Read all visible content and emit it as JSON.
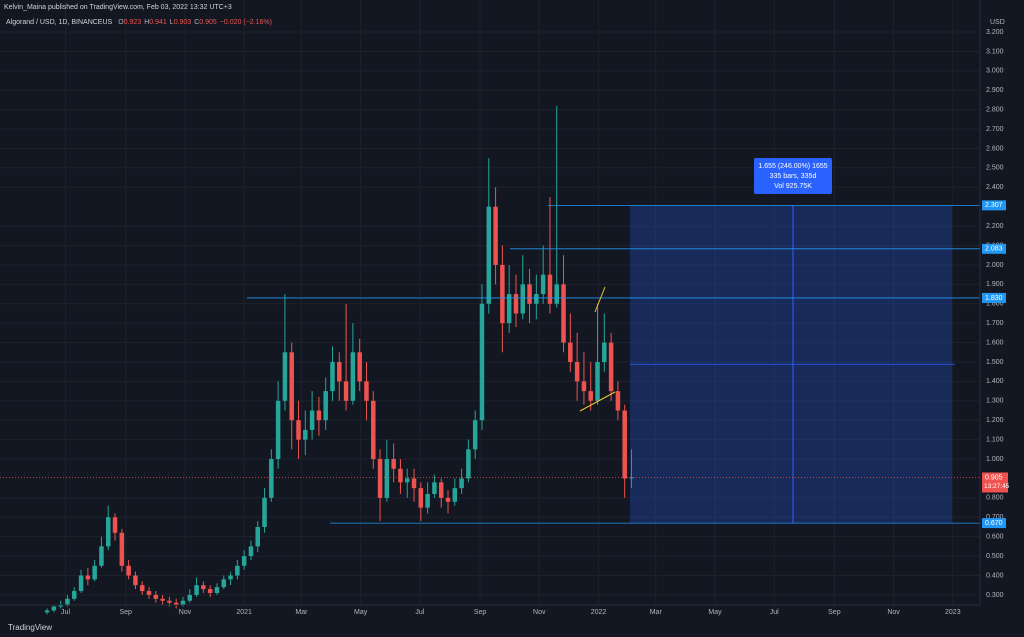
{
  "header": {
    "author_line": "Kelvin_Maina published on TradingView.com, Feb 03, 2022 13:32 UTC+3"
  },
  "chart_data": {
    "type": "candlestick",
    "legend_title": "Algorand / USD, 1D, BINANCEUS",
    "legend_values": [
      {
        "key": "O",
        "value": "0.923"
      },
      {
        "key": "H",
        "value": "0.941"
      },
      {
        "key": "L",
        "value": "0.903"
      },
      {
        "key": "C",
        "value": "0.905"
      }
    ],
    "legend_change": "−0.020 (−2.16%)",
    "y_unit": "USD",
    "up_color": "#26a69a",
    "down_color": "#ef5350",
    "x": [
      -203,
      -196,
      -189,
      -182,
      -175,
      -168,
      -161,
      -154,
      -147,
      -140,
      -133,
      -126,
      -119,
      -112,
      -105,
      -98,
      -91,
      -84,
      -77,
      -70,
      -63,
      -56,
      -49,
      -42,
      -35,
      -28,
      -21,
      -14,
      -7,
      0,
      7,
      14,
      21,
      28,
      35,
      42,
      49,
      56,
      63,
      70,
      77,
      84,
      91,
      98,
      105,
      112,
      119,
      126,
      133,
      140,
      147,
      154,
      161,
      168,
      175,
      182,
      189,
      196,
      203,
      210,
      217,
      224,
      231,
      238,
      245,
      252,
      259,
      266,
      273,
      280,
      287,
      294,
      301,
      308,
      315,
      322,
      329,
      336,
      343,
      350,
      357,
      364,
      371,
      378,
      385,
      392,
      399
    ],
    "open": [
      0.21,
      0.22,
      0.24,
      0.25,
      0.28,
      0.32,
      0.4,
      0.38,
      0.45,
      0.55,
      0.7,
      0.62,
      0.45,
      0.4,
      0.35,
      0.32,
      0.3,
      0.28,
      0.27,
      0.26,
      0.25,
      0.27,
      0.3,
      0.35,
      0.33,
      0.31,
      0.34,
      0.38,
      0.4,
      0.45,
      0.5,
      0.55,
      0.65,
      0.8,
      1.0,
      1.3,
      1.55,
      1.2,
      1.1,
      1.15,
      1.25,
      1.2,
      1.35,
      1.5,
      1.4,
      1.3,
      1.55,
      1.4,
      1.3,
      1.0,
      0.8,
      1.0,
      0.95,
      0.88,
      0.9,
      0.85,
      0.75,
      0.82,
      0.88,
      0.8,
      0.78,
      0.85,
      0.9,
      1.05,
      1.2,
      1.8,
      2.3,
      2.0,
      1.7,
      1.85,
      1.75,
      1.9,
      1.8,
      1.85,
      1.95,
      1.8,
      1.9,
      1.6,
      1.5,
      1.4,
      1.35,
      1.3,
      1.5,
      1.6,
      1.35,
      1.25,
      0.9
    ],
    "high": [
      0.23,
      0.25,
      0.27,
      0.3,
      0.34,
      0.43,
      0.44,
      0.48,
      0.6,
      0.76,
      0.72,
      0.64,
      0.48,
      0.42,
      0.37,
      0.34,
      0.32,
      0.3,
      0.29,
      0.28,
      0.29,
      0.33,
      0.39,
      0.37,
      0.35,
      0.36,
      0.4,
      0.42,
      0.48,
      0.53,
      0.58,
      0.68,
      0.85,
      1.05,
      1.4,
      1.85,
      1.6,
      1.3,
      1.25,
      1.35,
      1.32,
      1.42,
      1.58,
      1.55,
      1.8,
      1.7,
      1.62,
      1.5,
      1.35,
      1.05,
      1.1,
      1.08,
      1.0,
      0.95,
      0.95,
      0.88,
      0.88,
      0.92,
      0.9,
      0.84,
      0.9,
      0.95,
      1.1,
      1.25,
      1.9,
      2.55,
      2.4,
      2.1,
      2.0,
      1.95,
      2.05,
      1.98,
      1.95,
      2.1,
      2.35,
      2.82,
      2.05,
      1.75,
      1.65,
      1.55,
      1.5,
      1.8,
      1.75,
      1.65,
      1.4,
      1.28,
      1.05
    ],
    "low": [
      0.2,
      0.21,
      0.23,
      0.24,
      0.27,
      0.31,
      0.35,
      0.37,
      0.44,
      0.53,
      0.58,
      0.42,
      0.38,
      0.33,
      0.3,
      0.28,
      0.26,
      0.25,
      0.24,
      0.23,
      0.24,
      0.26,
      0.29,
      0.31,
      0.29,
      0.3,
      0.33,
      0.35,
      0.38,
      0.43,
      0.48,
      0.52,
      0.62,
      0.78,
      0.95,
      1.25,
      1.05,
      1.0,
      1.02,
      1.1,
      1.12,
      1.15,
      1.3,
      1.3,
      1.25,
      1.28,
      1.35,
      1.2,
      0.95,
      0.68,
      0.78,
      0.88,
      0.82,
      0.8,
      0.78,
      0.68,
      0.72,
      0.8,
      0.75,
      0.72,
      0.76,
      0.82,
      0.88,
      1.0,
      1.15,
      1.75,
      1.9,
      1.55,
      1.65,
      1.68,
      1.72,
      1.7,
      1.72,
      1.8,
      1.75,
      1.78,
      1.55,
      1.45,
      1.3,
      1.28,
      1.25,
      1.28,
      1.45,
      1.3,
      1.2,
      0.8,
      0.85
    ],
    "close": [
      0.22,
      0.24,
      0.25,
      0.28,
      0.32,
      0.4,
      0.38,
      0.45,
      0.55,
      0.7,
      0.62,
      0.45,
      0.4,
      0.35,
      0.32,
      0.3,
      0.28,
      0.27,
      0.26,
      0.25,
      0.27,
      0.3,
      0.35,
      0.33,
      0.31,
      0.34,
      0.38,
      0.4,
      0.45,
      0.5,
      0.55,
      0.65,
      0.8,
      1.0,
      1.3,
      1.55,
      1.2,
      1.1,
      1.15,
      1.25,
      1.2,
      1.35,
      1.5,
      1.4,
      1.3,
      1.55,
      1.4,
      1.3,
      1.0,
      0.8,
      1.0,
      0.95,
      0.88,
      0.9,
      0.85,
      0.75,
      0.82,
      0.88,
      0.8,
      0.78,
      0.85,
      0.9,
      1.05,
      1.2,
      1.8,
      2.3,
      2.0,
      1.7,
      1.85,
      1.75,
      1.9,
      1.8,
      1.85,
      1.95,
      1.8,
      1.9,
      1.6,
      1.5,
      1.4,
      1.35,
      1.3,
      1.5,
      1.6,
      1.35,
      1.25,
      0.9,
      0.905
    ],
    "xlim": [
      -251.5,
      758
    ],
    "xticks": [
      {
        "value": -184,
        "label": "Jul"
      },
      {
        "value": -122,
        "label": "Sep"
      },
      {
        "value": -61,
        "label": "Nov"
      },
      {
        "value": 0,
        "label": "2021"
      },
      {
        "value": 59,
        "label": "Mar"
      },
      {
        "value": 120,
        "label": "May"
      },
      {
        "value": 181,
        "label": "Jul"
      },
      {
        "value": 243,
        "label": "Sep"
      },
      {
        "value": 304,
        "label": "Nov"
      },
      {
        "value": 365,
        "label": "2022"
      },
      {
        "value": 424,
        "label": "Mar"
      },
      {
        "value": 485,
        "label": "May"
      },
      {
        "value": 546,
        "label": "Jul"
      },
      {
        "value": 608,
        "label": "Sep"
      },
      {
        "value": 669,
        "label": "Nov"
      },
      {
        "value": 730,
        "label": "2023"
      }
    ],
    "ylim": [
      0.248,
      3.262
    ],
    "yticks": [
      {
        "value": 0.3,
        "label": "0.300"
      },
      {
        "value": 0.4,
        "label": "0.400"
      },
      {
        "value": 0.5,
        "label": "0.500"
      },
      {
        "value": 0.6,
        "label": "0.600"
      },
      {
        "value": 0.7,
        "label": "0.700"
      },
      {
        "value": 0.8,
        "label": "0.800"
      },
      {
        "value": 1.0,
        "label": "1.000"
      },
      {
        "value": 1.1,
        "label": "1.100"
      },
      {
        "value": 1.2,
        "label": "1.200"
      },
      {
        "value": 1.3,
        "label": "1.300"
      },
      {
        "value": 1.4,
        "label": "1.400"
      },
      {
        "value": 1.5,
        "label": "1.500"
      },
      {
        "value": 1.6,
        "label": "1.600"
      },
      {
        "value": 1.7,
        "label": "1.700"
      },
      {
        "value": 1.8,
        "label": "1.800"
      },
      {
        "value": 1.9,
        "label": "1.900"
      },
      {
        "value": 2.0,
        "label": "2.000"
      },
      {
        "value": 2.1,
        "label": "2.100"
      },
      {
        "value": 2.2,
        "label": "2.200"
      },
      {
        "value": 2.4,
        "label": "2.400"
      },
      {
        "value": 2.5,
        "label": "2.500"
      },
      {
        "value": 2.6,
        "label": "2.600"
      },
      {
        "value": 2.7,
        "label": "2.700"
      },
      {
        "value": 2.8,
        "label": "2.800"
      },
      {
        "value": 2.9,
        "label": "2.900"
      },
      {
        "value": 3.0,
        "label": "3.000"
      },
      {
        "value": 3.1,
        "label": "3.100"
      },
      {
        "value": 3.2,
        "label": "3.200"
      }
    ],
    "grid": true,
    "levels": [
      2.307,
      2.083,
      {
        "value": 1.83,
        "label": "1.830"
      },
      {
        "value": 0.67,
        "label": "0.670"
      }
    ],
    "last_price": 0.905,
    "countdown": "13:27:45",
    "measure_lines": [
      "1.655 (246.00%) 1655",
      "335 bars, 335d",
      "Vol 925.75K"
    ]
  },
  "footer": {
    "brand": "TradingView"
  }
}
